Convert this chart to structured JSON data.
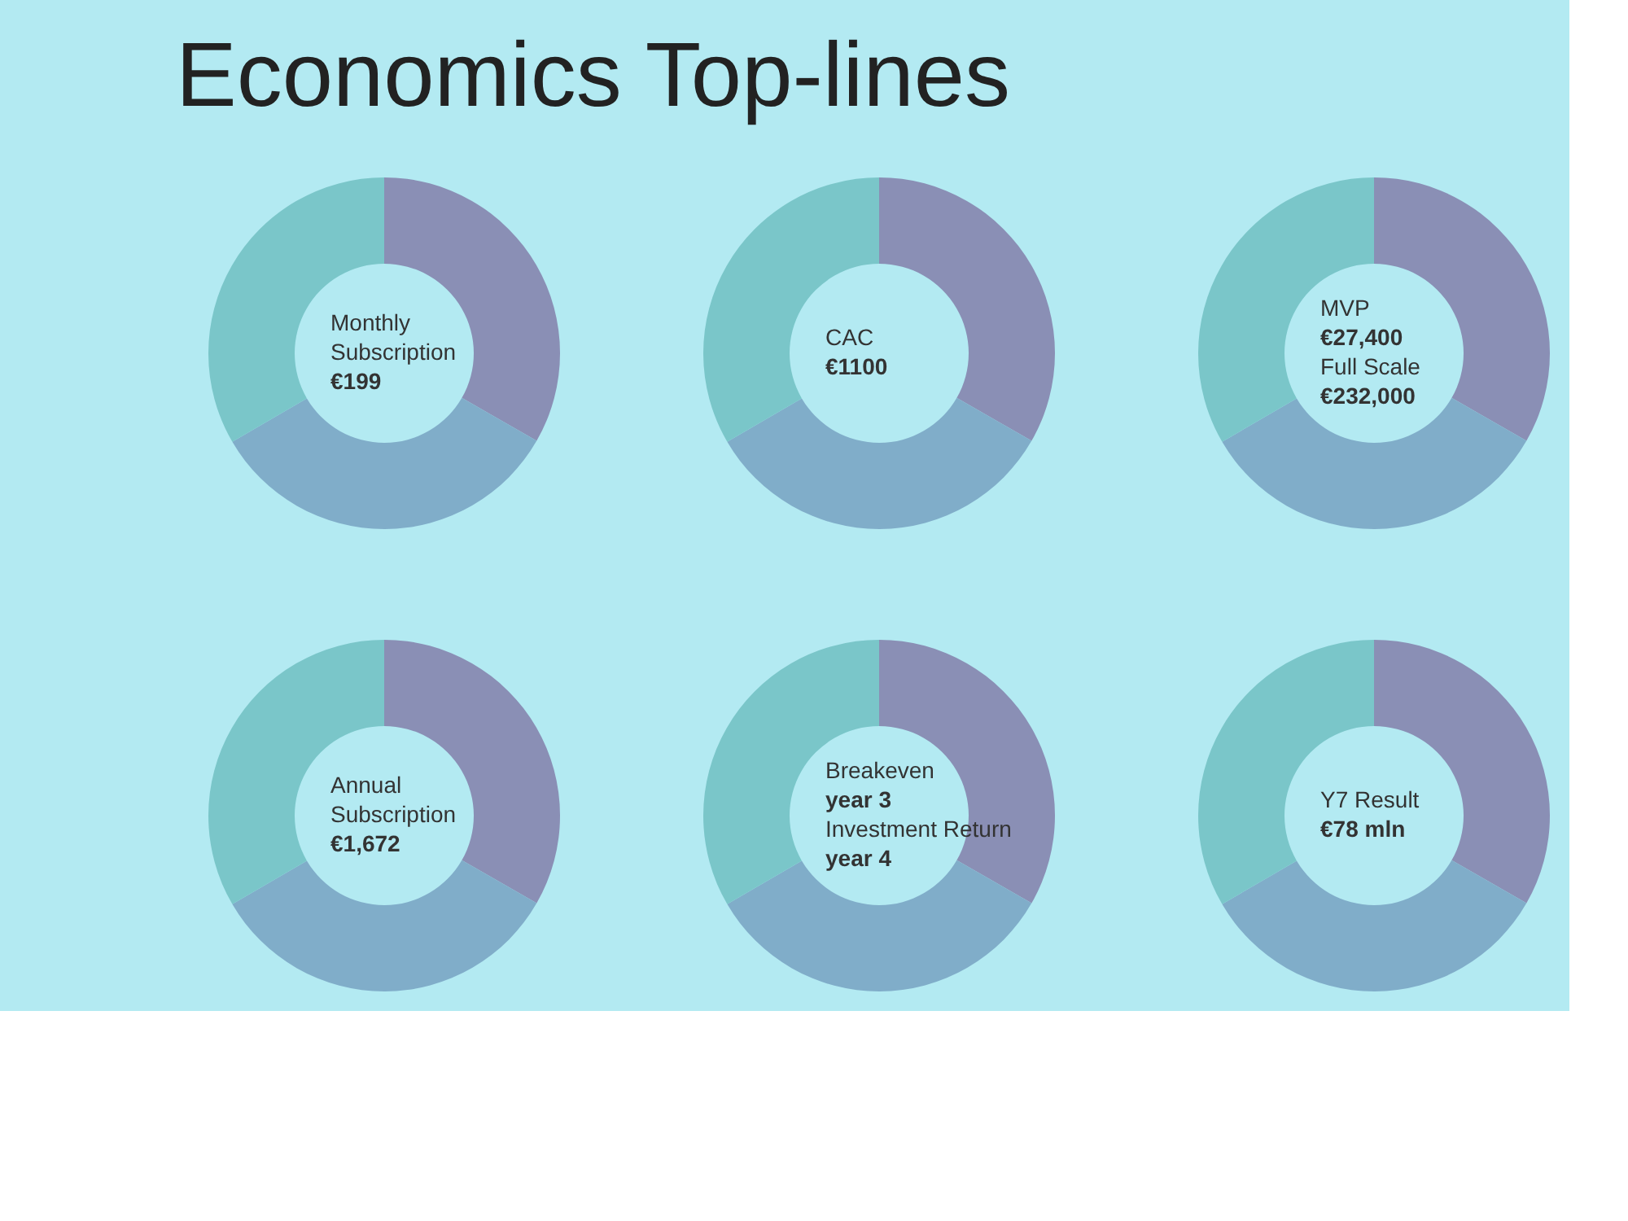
{
  "chart_data": [
    {
      "type": "donut",
      "title": "Economics Top-lines",
      "categories": [
        null,
        null,
        null
      ],
      "values": [
        33.3,
        33.3,
        33.4
      ],
      "colors": [
        "#8a8fb5",
        "#80adc9",
        "#7ac6c9"
      ],
      "annotations": [
        "Monthly Subscription",
        "€199"
      ]
    },
    {
      "type": "donut",
      "categories": [
        null,
        null,
        null
      ],
      "values": [
        33.3,
        33.3,
        33.4
      ],
      "colors": [
        "#8a8fb5",
        "#80adc9",
        "#7ac6c9"
      ],
      "annotations": [
        "CAC",
        "€1100"
      ]
    },
    {
      "type": "donut",
      "categories": [
        null,
        null,
        null
      ],
      "values": [
        33.3,
        33.3,
        33.4
      ],
      "colors": [
        "#8a8fb5",
        "#80adc9",
        "#7ac6c9"
      ],
      "annotations": [
        "MVP",
        "€27,400",
        "Full Scale",
        "€232,000"
      ]
    },
    {
      "type": "donut",
      "categories": [
        null,
        null,
        null
      ],
      "values": [
        33.3,
        33.3,
        33.4
      ],
      "colors": [
        "#8a8fb5",
        "#80adc9",
        "#7ac6c9"
      ],
      "annotations": [
        "Annual Subscription",
        "€1,672"
      ]
    },
    {
      "type": "donut",
      "categories": [
        null,
        null,
        null
      ],
      "values": [
        33.3,
        33.3,
        33.4
      ],
      "colors": [
        "#8a8fb5",
        "#80adc9",
        "#7ac6c9"
      ],
      "annotations": [
        "Breakeven",
        "year 3",
        "Investment Return",
        "year 4"
      ]
    },
    {
      "type": "donut",
      "categories": [
        null,
        null,
        null
      ],
      "values": [
        33.3,
        33.3,
        33.4
      ],
      "colors": [
        "#8a8fb5",
        "#80adc9",
        "#7ac6c9"
      ],
      "annotations": [
        "Y7 Result",
        "€78 mln"
      ]
    }
  ]
}
